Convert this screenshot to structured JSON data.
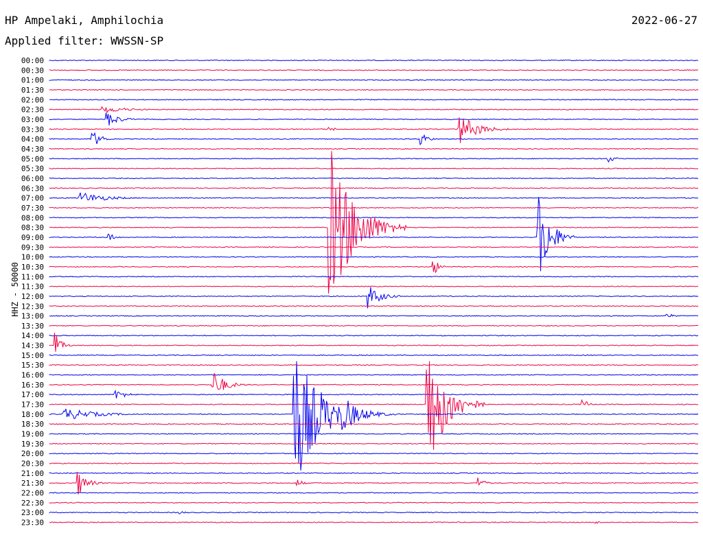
{
  "header": {
    "station": "HP Ampelaki, Amphilochia",
    "filter": "Applied filter: WWSSN-SP",
    "date": "2022-06-27"
  },
  "chart_data": {
    "type": "line",
    "title": "HP Ampelaki, Amphilochia",
    "subtitle": "Applied filter: WWSSN-SP",
    "ylabel": "HHZ - 50000",
    "colors": [
      "#0000ee",
      "#ee0044"
    ],
    "rows": [
      "00:00",
      "00:30",
      "01:00",
      "01:30",
      "02:00",
      "02:30",
      "03:00",
      "03:30",
      "04:00",
      "04:30",
      "05:00",
      "05:30",
      "06:00",
      "06:30",
      "07:00",
      "07:30",
      "08:00",
      "08:30",
      "09:00",
      "09:30",
      "10:00",
      "10:30",
      "11:00",
      "11:30",
      "12:00",
      "12:30",
      "13:00",
      "13:30",
      "14:00",
      "14:30",
      "15:00",
      "15:30",
      "16:00",
      "16:30",
      "17:00",
      "17:30",
      "18:00",
      "18:30",
      "19:00",
      "19:30",
      "20:00",
      "20:30",
      "21:00",
      "21:30",
      "22:00",
      "22:30",
      "23:00",
      "23:30"
    ],
    "events": [
      {
        "row": 5,
        "x": 0.08,
        "amp": 6,
        "dur": 0.04
      },
      {
        "row": 6,
        "x": 0.085,
        "amp": 14,
        "dur": 0.02
      },
      {
        "row": 8,
        "x": 0.063,
        "amp": 16,
        "dur": 0.015
      },
      {
        "row": 7,
        "x": 0.43,
        "amp": 5,
        "dur": 0.01
      },
      {
        "row": 8,
        "x": 0.57,
        "amp": 18,
        "dur": 0.01
      },
      {
        "row": 7,
        "x": 0.63,
        "amp": 24,
        "dur": 0.03
      },
      {
        "row": 10,
        "x": 0.86,
        "amp": 8,
        "dur": 0.01
      },
      {
        "row": 14,
        "x": 0.045,
        "amp": 10,
        "dur": 0.04
      },
      {
        "row": 17,
        "x": 0.43,
        "amp": 130,
        "dur": 0.04
      },
      {
        "row": 18,
        "x": 0.09,
        "amp": 8,
        "dur": 0.01
      },
      {
        "row": 18,
        "x": 0.752,
        "amp": 75,
        "dur": 0.02
      },
      {
        "row": 21,
        "x": 0.59,
        "amp": 16,
        "dur": 0.01
      },
      {
        "row": 24,
        "x": 0.49,
        "amp": 20,
        "dur": 0.02
      },
      {
        "row": 26,
        "x": 0.95,
        "amp": 6,
        "dur": 0.01
      },
      {
        "row": 29,
        "x": 0.007,
        "amp": 24,
        "dur": 0.01
      },
      {
        "row": 33,
        "x": 0.25,
        "amp": 24,
        "dur": 0.02
      },
      {
        "row": 34,
        "x": 0.1,
        "amp": 8,
        "dur": 0.02
      },
      {
        "row": 36,
        "x": 0.02,
        "amp": 10,
        "dur": 0.05
      },
      {
        "row": 36,
        "x": 0.375,
        "amp": 120,
        "dur": 0.04
      },
      {
        "row": 36,
        "x": 0.45,
        "amp": 30,
        "dur": 0.03
      },
      {
        "row": 35,
        "x": 0.58,
        "amp": 120,
        "dur": 0.03
      },
      {
        "row": 35,
        "x": 0.82,
        "amp": 10,
        "dur": 0.01
      },
      {
        "row": 43,
        "x": 0.042,
        "amp": 22,
        "dur": 0.015
      },
      {
        "row": 43,
        "x": 0.38,
        "amp": 8,
        "dur": 0.01
      },
      {
        "row": 43,
        "x": 0.66,
        "amp": 10,
        "dur": 0.01
      },
      {
        "row": 46,
        "x": 0.2,
        "amp": 3,
        "dur": 0.01
      },
      {
        "row": 47,
        "x": 0.84,
        "amp": 3,
        "dur": 0.01
      }
    ]
  }
}
